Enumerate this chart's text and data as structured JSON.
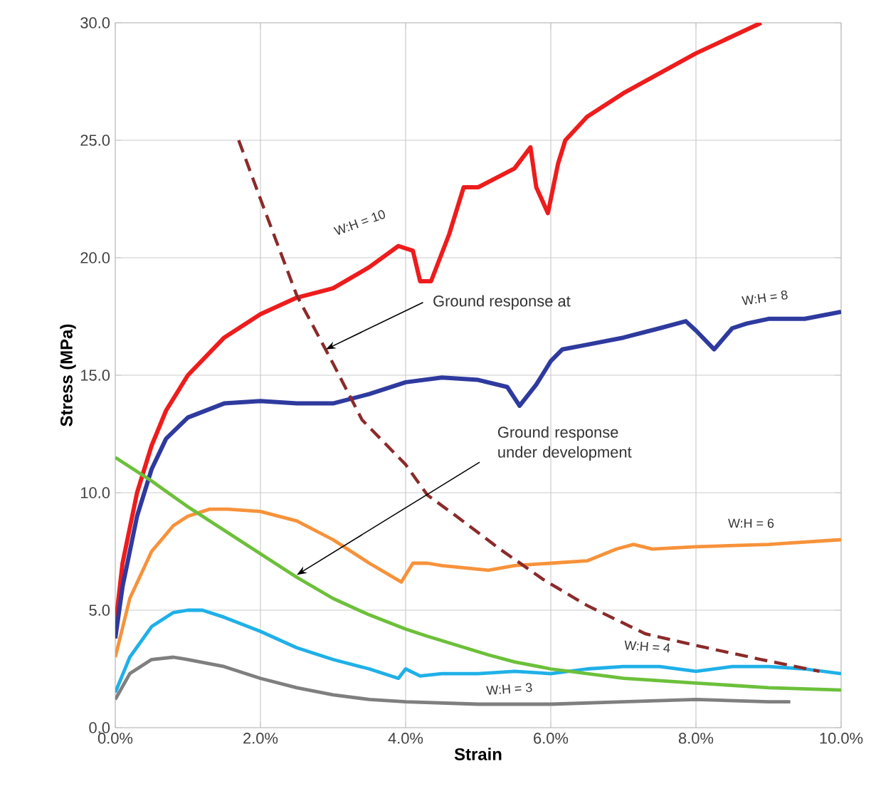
{
  "chart_data": {
    "type": "line",
    "xlabel": "Strain",
    "ylabel": "Stress (MPa)",
    "xlim": [
      0,
      10
    ],
    "ylim": [
      0,
      30
    ],
    "xticks": [
      {
        "value": 0,
        "label": "0.0%"
      },
      {
        "value": 2,
        "label": "2.0%"
      },
      {
        "value": 4,
        "label": "4.0%"
      },
      {
        "value": 6,
        "label": "6.0%"
      },
      {
        "value": 8,
        "label": "8.0%"
      },
      {
        "value": 10,
        "label": "10.0%"
      }
    ],
    "yticks": [
      {
        "value": 0,
        "label": "0.0"
      },
      {
        "value": 5,
        "label": "5.0"
      },
      {
        "value": 10,
        "label": "10.0"
      },
      {
        "value": 15,
        "label": "15.0"
      },
      {
        "value": 20,
        "label": "20.0"
      },
      {
        "value": 25,
        "label": "25.0"
      },
      {
        "value": 30,
        "label": "30.0"
      }
    ],
    "grid": true,
    "marker": "none",
    "legend": false,
    "series": [
      {
        "name": "W:H = 10",
        "color": "#ee1c1c",
        "line_style": "solid",
        "x": [
          0,
          0.1,
          0.3,
          0.5,
          0.7,
          1.0,
          1.5,
          2.0,
          2.5,
          3.0,
          3.5,
          3.9,
          4.1,
          4.2,
          4.35,
          4.6,
          4.8,
          5.0,
          5.5,
          5.72,
          5.8,
          5.96,
          6.1,
          6.2,
          6.5,
          7.0,
          8.0,
          8.9
        ],
        "values": [
          4.3,
          7,
          10,
          12,
          13.5,
          15,
          16.6,
          17.6,
          18.3,
          18.7,
          19.6,
          20.5,
          20.3,
          19.0,
          19.0,
          21.0,
          23.0,
          23.0,
          23.8,
          24.7,
          23.0,
          21.9,
          24.0,
          25.0,
          26.0,
          27.0,
          28.7,
          30.0
        ]
      },
      {
        "name": "W:H = 8",
        "color": "#2e3a9e",
        "line_style": "solid",
        "x": [
          0,
          0.1,
          0.3,
          0.5,
          0.7,
          1.0,
          1.5,
          2.0,
          2.5,
          3.0,
          3.5,
          4.0,
          4.5,
          5.0,
          5.4,
          5.57,
          5.8,
          6.0,
          6.16,
          6.5,
          7.0,
          7.5,
          7.86,
          8.0,
          8.25,
          8.5,
          8.7,
          9.0,
          9.5,
          10.0
        ],
        "values": [
          3.8,
          6,
          9,
          11,
          12.3,
          13.2,
          13.8,
          13.9,
          13.8,
          13.8,
          14.2,
          14.7,
          14.9,
          14.8,
          14.5,
          13.7,
          14.6,
          15.6,
          16.1,
          16.3,
          16.6,
          17.0,
          17.3,
          16.9,
          16.1,
          17.0,
          17.2,
          17.4,
          17.4,
          17.7
        ]
      },
      {
        "name": "W:H = 6",
        "color": "#f7923a",
        "line_style": "solid",
        "x": [
          0,
          0.2,
          0.5,
          0.8,
          1.0,
          1.3,
          1.55,
          2.0,
          2.5,
          3.0,
          3.5,
          3.94,
          4.1,
          4.3,
          4.5,
          5.14,
          5.5,
          6.0,
          6.5,
          6.9,
          7.14,
          7.4,
          8.0,
          9.0,
          10.0
        ],
        "values": [
          3,
          5.5,
          7.5,
          8.6,
          9.0,
          9.3,
          9.3,
          9.2,
          8.8,
          8.0,
          7.0,
          6.2,
          7.0,
          7.0,
          6.9,
          6.7,
          6.9,
          7.0,
          7.1,
          7.6,
          7.8,
          7.6,
          7.7,
          7.8,
          8.0
        ]
      },
      {
        "name": "W:H = 4",
        "color": "#1fb0e8",
        "line_style": "solid",
        "x": [
          0,
          0.2,
          0.5,
          0.8,
          1.0,
          1.2,
          1.5,
          2.0,
          2.5,
          3.0,
          3.5,
          3.9,
          4.0,
          4.2,
          4.5,
          5.0,
          5.5,
          6.0,
          6.5,
          7.0,
          7.5,
          8.0,
          8.5,
          9.0,
          9.5,
          10.0
        ],
        "values": [
          1.5,
          3,
          4.3,
          4.9,
          5.0,
          5.0,
          4.7,
          4.1,
          3.4,
          2.9,
          2.5,
          2.1,
          2.5,
          2.2,
          2.3,
          2.3,
          2.4,
          2.3,
          2.5,
          2.6,
          2.6,
          2.4,
          2.6,
          2.6,
          2.5,
          2.3
        ]
      },
      {
        "name": "W:H = 3",
        "color": "#7f7f7f",
        "line_style": "solid",
        "x": [
          0,
          0.2,
          0.5,
          0.8,
          1.0,
          1.5,
          2.0,
          2.5,
          3.0,
          3.5,
          4.0,
          5.0,
          6.0,
          7.0,
          8.0,
          9.0,
          9.3
        ],
        "values": [
          1.2,
          2.3,
          2.9,
          3.0,
          2.9,
          2.6,
          2.1,
          1.7,
          1.4,
          1.2,
          1.1,
          1.0,
          1.0,
          1.1,
          1.2,
          1.1,
          1.1
        ]
      },
      {
        "color": "#6cc03a",
        "line_style": "solid",
        "x": [
          0,
          0.5,
          1.0,
          1.5,
          2.0,
          2.5,
          3.0,
          3.5,
          4.0,
          4.29,
          5.14,
          5.5,
          6.0,
          7.0,
          8.0,
          9.0,
          10.0
        ],
        "values": [
          11.5,
          10.5,
          9.4,
          8.4,
          7.4,
          6.4,
          5.5,
          4.8,
          4.2,
          3.9,
          3.1,
          2.8,
          2.5,
          2.1,
          1.9,
          1.7,
          1.6
        ]
      },
      {
        "color": "#8b2a2a",
        "line_style": "dashed",
        "x": [
          1.7,
          2.0,
          2.5,
          3.0,
          3.4,
          4.0,
          4.3,
          4.7,
          5.3,
          5.9,
          6.5,
          7.3,
          8.0,
          8.9,
          9.7
        ],
        "values": [
          25.0,
          22.5,
          18.4,
          15.5,
          13.1,
          11.2,
          9.9,
          9.0,
          7.6,
          6.3,
          5.2,
          4.0,
          3.5,
          2.9,
          2.4
        ]
      }
    ],
    "annotations": [
      {
        "text": "Ground response at",
        "x": 2.9,
        "y": 16.1
      },
      {
        "text": "Ground response under development",
        "x": 2.5,
        "y": 6.5
      }
    ]
  }
}
